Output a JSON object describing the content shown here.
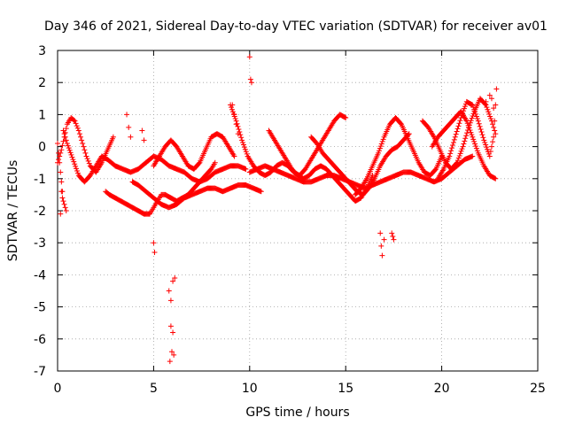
{
  "chart_data": {
    "type": "scatter",
    "title": "Day 346 of 2021, Sidereal Day-to-day VTEC variation (SDTVAR) for receiver av01",
    "xlabel": "GPS time / hours",
    "ylabel": "SDTVAR / TECUs",
    "xlim": [
      0,
      25
    ],
    "ylim": [
      -7,
      3
    ],
    "xticks": [
      "0",
      "5",
      "10",
      "15",
      "20",
      "25"
    ],
    "yticks": [
      "3",
      "2",
      "1",
      "0",
      "-1",
      "-2",
      "-3",
      "-4",
      "-5",
      "-6",
      "-7"
    ],
    "grid": true,
    "marker": "+",
    "color": "#ff0000",
    "tracks": [
      {
        "x": [
          0.0,
          0.2,
          0.35,
          0.5,
          0.7,
          0.9,
          1.1,
          1.3,
          1.5,
          1.7,
          2.0,
          2.3,
          2.6,
          2.9
        ],
        "y": [
          -0.5,
          -0.1,
          0.3,
          0.7,
          0.9,
          0.8,
          0.5,
          0.1,
          -0.3,
          -0.6,
          -0.8,
          -0.5,
          -0.1,
          0.3
        ]
      },
      {
        "x": [
          0.3,
          0.5,
          0.8,
          1.1,
          1.4,
          1.7,
          2.0,
          2.3,
          2.6,
          3.0,
          3.4,
          3.8,
          4.2,
          4.6,
          5.0,
          5.4,
          5.8,
          6.2,
          6.6,
          7.0,
          7.4,
          7.8,
          8.2,
          8.6,
          9.0,
          9.4,
          9.8
        ],
        "y": [
          0.5,
          0.1,
          -0.4,
          -0.9,
          -1.1,
          -0.9,
          -0.6,
          -0.3,
          -0.4,
          -0.6,
          -0.7,
          -0.8,
          -0.7,
          -0.5,
          -0.3,
          -0.4,
          -0.6,
          -0.7,
          -0.8,
          -1.0,
          -1.1,
          -1.0,
          -0.8,
          -0.7,
          -0.6,
          -0.6,
          -0.7
        ]
      },
      {
        "x": [
          0.0,
          0.15,
          0.3,
          0.45
        ],
        "y": [
          0.1,
          -0.8,
          -1.7,
          -2.0
        ]
      },
      {
        "x": [
          2.5,
          2.7,
          3.0,
          3.3,
          3.6,
          3.9,
          4.2,
          4.5,
          4.8,
          5.0,
          5.2,
          5.4,
          5.6,
          5.9,
          6.2,
          6.5,
          6.8,
          7.1,
          7.4,
          7.7,
          8.0,
          8.2
        ],
        "y": [
          -1.4,
          -1.5,
          -1.6,
          -1.7,
          -1.8,
          -1.9,
          -2.0,
          -2.1,
          -2.1,
          -1.9,
          -1.7,
          -1.5,
          -1.5,
          -1.6,
          -1.7,
          -1.6,
          -1.5,
          -1.3,
          -1.1,
          -0.9,
          -0.7,
          -0.5
        ]
      },
      {
        "x": [
          3.9,
          4.2,
          4.6,
          5.0,
          5.4,
          5.8,
          6.2,
          6.6,
          7.0,
          7.4,
          7.8,
          8.2,
          8.6,
          9.0,
          9.4,
          9.8,
          10.2,
          10.6
        ],
        "y": [
          -1.1,
          -1.2,
          -1.4,
          -1.6,
          -1.8,
          -1.9,
          -1.8,
          -1.6,
          -1.5,
          -1.4,
          -1.3,
          -1.3,
          -1.4,
          -1.3,
          -1.2,
          -1.2,
          -1.3,
          -1.4
        ]
      },
      {
        "x": [
          5.0,
          5.3,
          5.6,
          5.9,
          6.2,
          6.5,
          6.8,
          7.1,
          7.4,
          7.7,
          8.0,
          8.3,
          8.6,
          8.9,
          9.2
        ],
        "y": [
          -0.6,
          -0.3,
          0.0,
          0.2,
          0.0,
          -0.3,
          -0.6,
          -0.7,
          -0.5,
          -0.1,
          0.3,
          0.4,
          0.3,
          0.0,
          -0.3
        ]
      },
      {
        "x": [
          9.0,
          9.3,
          9.6,
          9.9,
          10.2,
          10.5,
          10.8,
          11.1,
          11.4,
          11.7,
          12.0,
          12.3,
          12.6,
          12.9,
          13.2,
          13.5,
          13.8,
          14.1,
          14.4,
          14.7,
          15.0
        ],
        "y": [
          1.3,
          0.8,
          0.2,
          -0.3,
          -0.6,
          -0.8,
          -0.9,
          -0.8,
          -0.6,
          -0.5,
          -0.6,
          -0.8,
          -0.9,
          -0.7,
          -0.4,
          -0.1,
          0.2,
          0.5,
          0.8,
          1.0,
          0.9
        ]
      },
      {
        "x": [
          10.0,
          10.4,
          10.8,
          11.2,
          11.6,
          12.0,
          12.4,
          12.8,
          13.2,
          13.6,
          14.0,
          14.4,
          14.8,
          15.2,
          15.6,
          16.0,
          16.4,
          16.8,
          17.2,
          17.6,
          18.0,
          18.4,
          18.8,
          19.2,
          19.6,
          20.0,
          20.4,
          20.8,
          21.2,
          21.6
        ],
        "y": [
          -0.8,
          -0.7,
          -0.6,
          -0.7,
          -0.8,
          -0.9,
          -1.0,
          -1.1,
          -1.1,
          -1.0,
          -0.9,
          -0.9,
          -1.0,
          -1.1,
          -1.2,
          -1.3,
          -1.2,
          -1.1,
          -1.0,
          -0.9,
          -0.8,
          -0.8,
          -0.9,
          -1.0,
          -1.1,
          -1.0,
          -0.8,
          -0.6,
          -0.4,
          -0.3
        ]
      },
      {
        "x": [
          11.0,
          11.3,
          11.6,
          11.9,
          12.2,
          12.5,
          12.8,
          13.1,
          13.4,
          13.7,
          14.0,
          14.3,
          14.6,
          14.9,
          15.2,
          15.5,
          15.8,
          16.1,
          16.4
        ],
        "y": [
          0.5,
          0.2,
          -0.1,
          -0.4,
          -0.7,
          -0.9,
          -1.0,
          -0.9,
          -0.7,
          -0.6,
          -0.7,
          -0.9,
          -1.1,
          -1.3,
          -1.5,
          -1.7,
          -1.6,
          -1.3,
          -0.9
        ]
      },
      {
        "x": [
          13.2,
          13.5,
          13.8,
          14.1,
          14.4,
          14.7,
          15.0,
          15.3,
          15.6,
          15.9,
          16.2,
          16.5,
          16.8,
          17.1,
          17.4,
          17.7,
          18.0,
          18.3
        ],
        "y": [
          0.3,
          0.1,
          -0.2,
          -0.4,
          -0.6,
          -0.8,
          -1.0,
          -1.2,
          -1.4,
          -1.5,
          -1.3,
          -1.0,
          -0.6,
          -0.3,
          -0.1,
          0.0,
          0.2,
          0.4
        ]
      },
      {
        "x": [
          15.5,
          15.8,
          16.1,
          16.4,
          16.7,
          17.0,
          17.3,
          17.6,
          17.9,
          18.2,
          18.5,
          18.8,
          19.1,
          19.4,
          19.7,
          20.0
        ],
        "y": [
          -1.5,
          -1.3,
          -1.0,
          -0.6,
          -0.2,
          0.3,
          0.7,
          0.9,
          0.7,
          0.3,
          -0.1,
          -0.5,
          -0.8,
          -0.9,
          -0.7,
          -0.3
        ]
      },
      {
        "x": [
          19.0,
          19.3,
          19.6,
          19.9,
          20.2,
          20.5,
          20.8,
          21.1,
          21.4,
          21.7,
          22.0,
          22.3,
          22.6,
          22.8
        ],
        "y": [
          0.8,
          0.6,
          0.3,
          -0.1,
          -0.5,
          -0.7,
          -0.5,
          0.0,
          0.6,
          1.1,
          1.5,
          1.3,
          0.8,
          0.4
        ]
      },
      {
        "x": [
          19.5,
          19.8,
          20.1,
          20.4,
          20.7,
          21.0,
          21.3,
          21.6,
          21.9,
          22.2,
          22.5,
          22.8
        ],
        "y": [
          0.0,
          0.3,
          0.5,
          0.7,
          0.9,
          1.1,
          0.8,
          0.3,
          -0.2,
          -0.6,
          -0.9,
          -1.0
        ]
      },
      {
        "x": [
          19.8,
          20.1,
          20.4,
          20.7,
          21.0,
          21.3,
          21.6,
          21.9,
          22.2,
          22.5,
          22.7,
          22.85
        ],
        "y": [
          -1.0,
          -0.7,
          -0.3,
          0.3,
          0.9,
          1.4,
          1.3,
          0.8,
          0.2,
          -0.3,
          0.3,
          1.8
        ]
      }
    ],
    "scattered_points": {
      "x": [
        3.6,
        3.7,
        3.8,
        4.4,
        4.5,
        4.6,
        5.0,
        5.05,
        5.8,
        5.9,
        6.0,
        6.1,
        5.9,
        6.0,
        5.95,
        5.85,
        6.05,
        9.1,
        9.2,
        9.3,
        9.4,
        10.0,
        10.05,
        10.1,
        0.2,
        0.25,
        0.15,
        16.8,
        16.85,
        16.9,
        17.0,
        17.4,
        17.5,
        17.45,
        22.3,
        22.5,
        22.6,
        22.7
      ],
      "y": [
        1.0,
        0.6,
        0.3,
        0.5,
        0.2,
        -0.5,
        -3.0,
        -3.3,
        -4.5,
        -4.8,
        -4.2,
        -4.1,
        -5.6,
        -5.8,
        -6.4,
        -6.7,
        -6.5,
        1.3,
        1.0,
        0.7,
        0.4,
        2.8,
        2.1,
        2.0,
        -1.4,
        -1.6,
        -2.1,
        -2.7,
        -3.1,
        -3.4,
        -2.9,
        -2.7,
        -2.9,
        -2.8,
        1.4,
        1.6,
        1.5,
        1.2
      ]
    }
  }
}
